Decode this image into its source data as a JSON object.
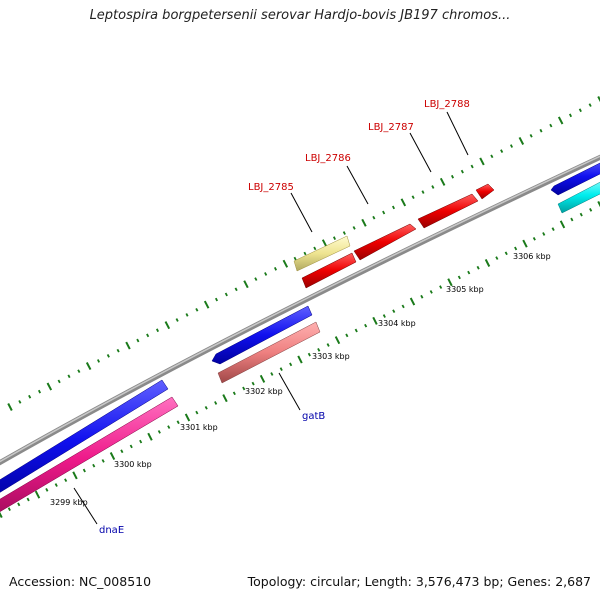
{
  "title": "Leptospira borgpetersenii serovar Hardjo-bovis JB197 chromos...",
  "footer": {
    "accession": "Accession: NC_008510",
    "summary": "Topology: circular; Length: 3,576,473 bp; Genes: 2,687"
  },
  "scale_labels": [
    "3299 kbp",
    "3300 kbp",
    "3301 kbp",
    "3302 kbp",
    "3303 kbp",
    "3304 kbp",
    "3305 kbp",
    "3306 kbp"
  ],
  "gene_labels": [
    {
      "text": "LBJ_2785",
      "color": "#cc0000"
    },
    {
      "text": "LBJ_2786",
      "color": "#cc0000"
    },
    {
      "text": "LBJ_2787",
      "color": "#cc0000"
    },
    {
      "text": "LBJ_2788",
      "color": "#cc0000"
    },
    {
      "text": "gatB",
      "color": "#0000aa"
    },
    {
      "text": "dnaE",
      "color": "#0000aa"
    }
  ],
  "colors": {
    "backbone": "#888888",
    "ticks": "#1a7a1a",
    "blue_feature": "#1010ee",
    "pink_feature": "#ee1a8a",
    "salmon_feature": "#ee8080",
    "yellow_feature": "#eee490",
    "red_feature": "#ee0000",
    "cyan_feature": "#00eeee"
  }
}
